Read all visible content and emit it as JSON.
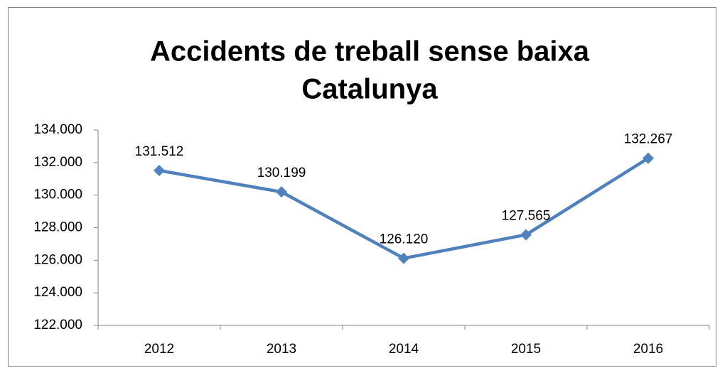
{
  "chart_data": {
    "type": "line",
    "title": [
      "Accidents de treball sense baixa",
      "Catalunya"
    ],
    "categories": [
      "2012",
      "2013",
      "2014",
      "2015",
      "2016"
    ],
    "series": [
      {
        "name": "Accidents de treball sense baixa",
        "color": "#4f81bd",
        "values": [
          131512,
          130199,
          126120,
          127565,
          132267
        ],
        "value_labels": [
          "131.512",
          "130.199",
          "126.120",
          "127.565",
          "132.267"
        ]
      }
    ],
    "ylim": [
      122000,
      134000
    ],
    "yticks": [
      {
        "value": 122000,
        "label": "122.000"
      },
      {
        "value": 124000,
        "label": "124.000"
      },
      {
        "value": 126000,
        "label": "126.000"
      },
      {
        "value": 128000,
        "label": "128.000"
      },
      {
        "value": 130000,
        "label": "130.000"
      },
      {
        "value": 132000,
        "label": "132.000"
      },
      {
        "value": 134000,
        "label": "134.000"
      }
    ],
    "grid": false,
    "legend": false
  }
}
